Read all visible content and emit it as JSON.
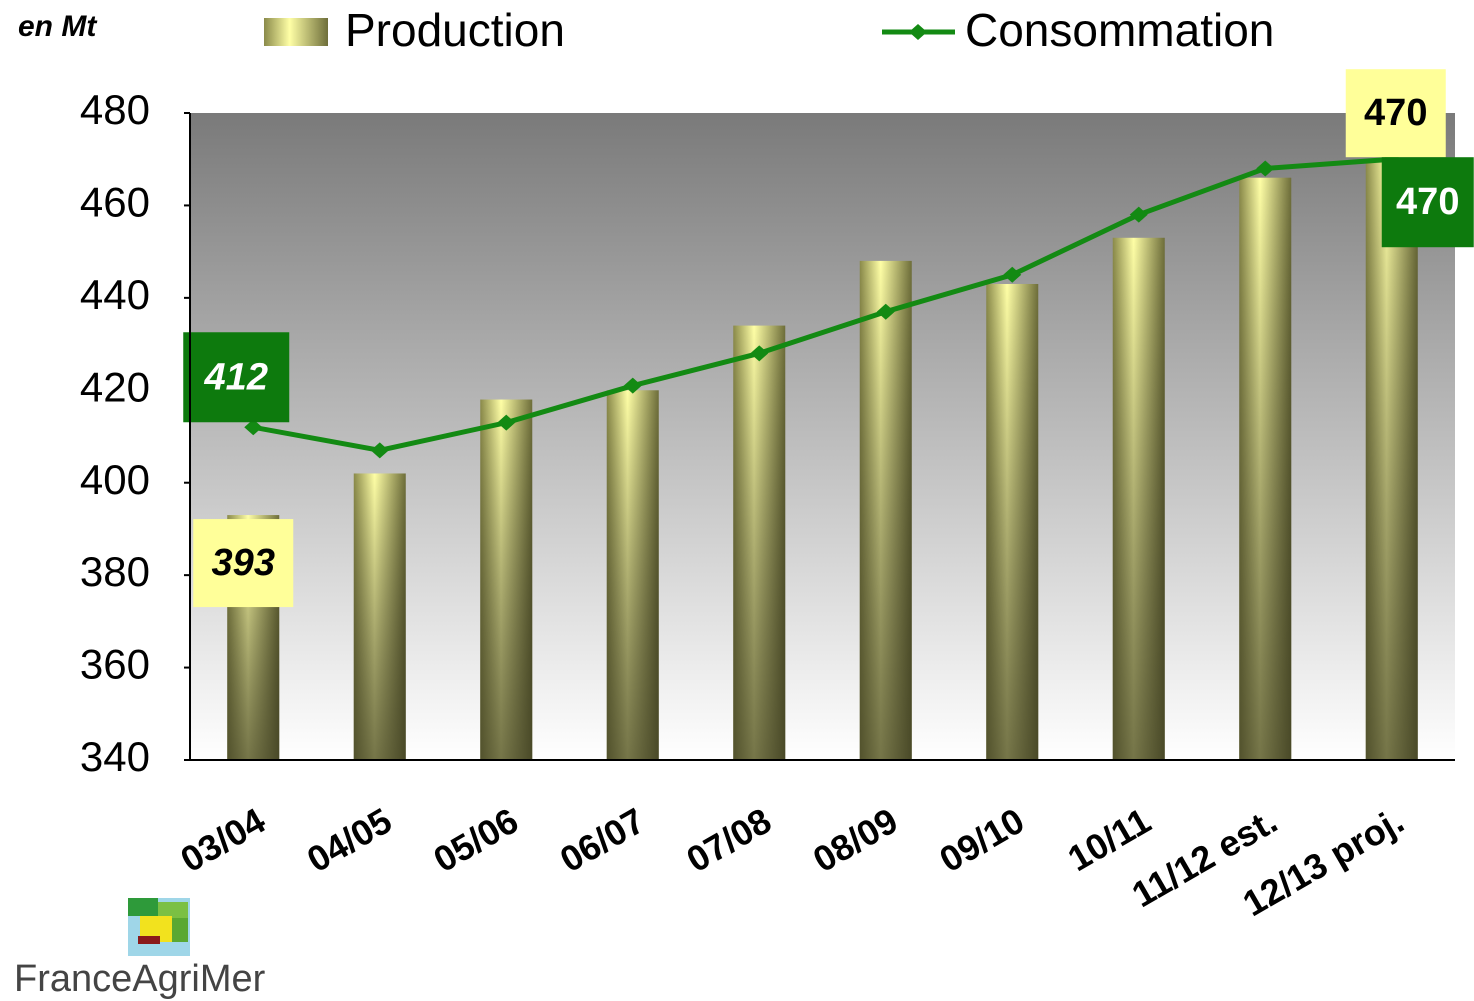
{
  "chart_data": {
    "type": "bar_line",
    "y_label": "en Mt",
    "logo_text": "FranceAgriMer",
    "categories": [
      "03/04",
      "04/05",
      "05/06",
      "06/07",
      "07/08",
      "08/09",
      "09/10",
      "10/11",
      "11/12 est.",
      "12/13 proj."
    ],
    "series": [
      {
        "name": "Production",
        "type": "bar",
        "color": "#f5f5a0",
        "values": [
          393,
          402,
          418,
          420,
          434,
          448,
          443,
          453,
          466,
          470
        ],
        "labels_at": [
          0,
          9
        ]
      },
      {
        "name": "Consommation",
        "type": "line",
        "color": "#138a13",
        "values": [
          412,
          407,
          413,
          421,
          428,
          437,
          445,
          458,
          468,
          470
        ],
        "labels_at": [
          0,
          9
        ]
      }
    ],
    "ylim": [
      340,
      480
    ],
    "yticks": [
      340,
      360,
      380,
      400,
      420,
      440,
      460,
      480
    ],
    "grid": false
  }
}
